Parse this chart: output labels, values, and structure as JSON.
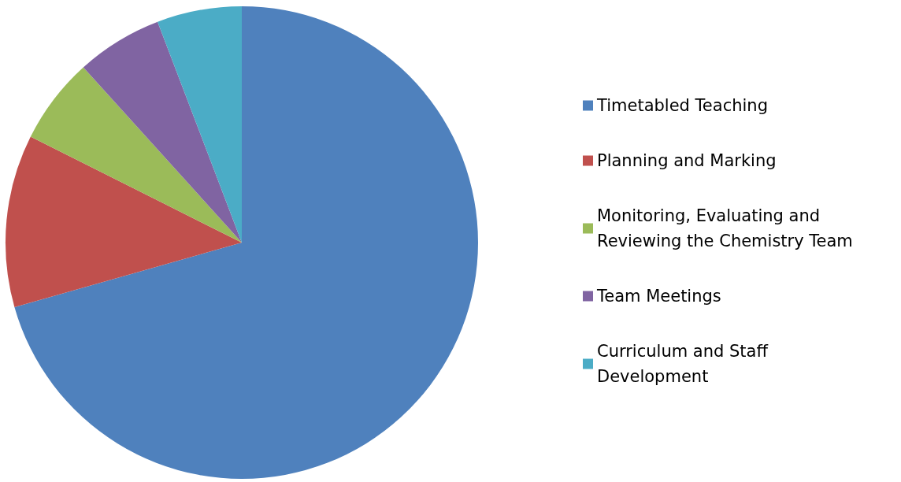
{
  "chart_data": {
    "type": "pie",
    "categories": [
      "Timetabled Teaching",
      "Planning and Marking",
      "Monitoring, Evaluating and Reviewing the Chemistry Team",
      "Team Meetings",
      "Curriculum and Staff Development"
    ],
    "values": [
      70.6,
      11.8,
      5.9,
      5.9,
      5.8
    ],
    "colors": [
      "#4f81bd",
      "#c0504d",
      "#9bbb59",
      "#8064a2",
      "#4bacc6"
    ],
    "legend": "right"
  }
}
